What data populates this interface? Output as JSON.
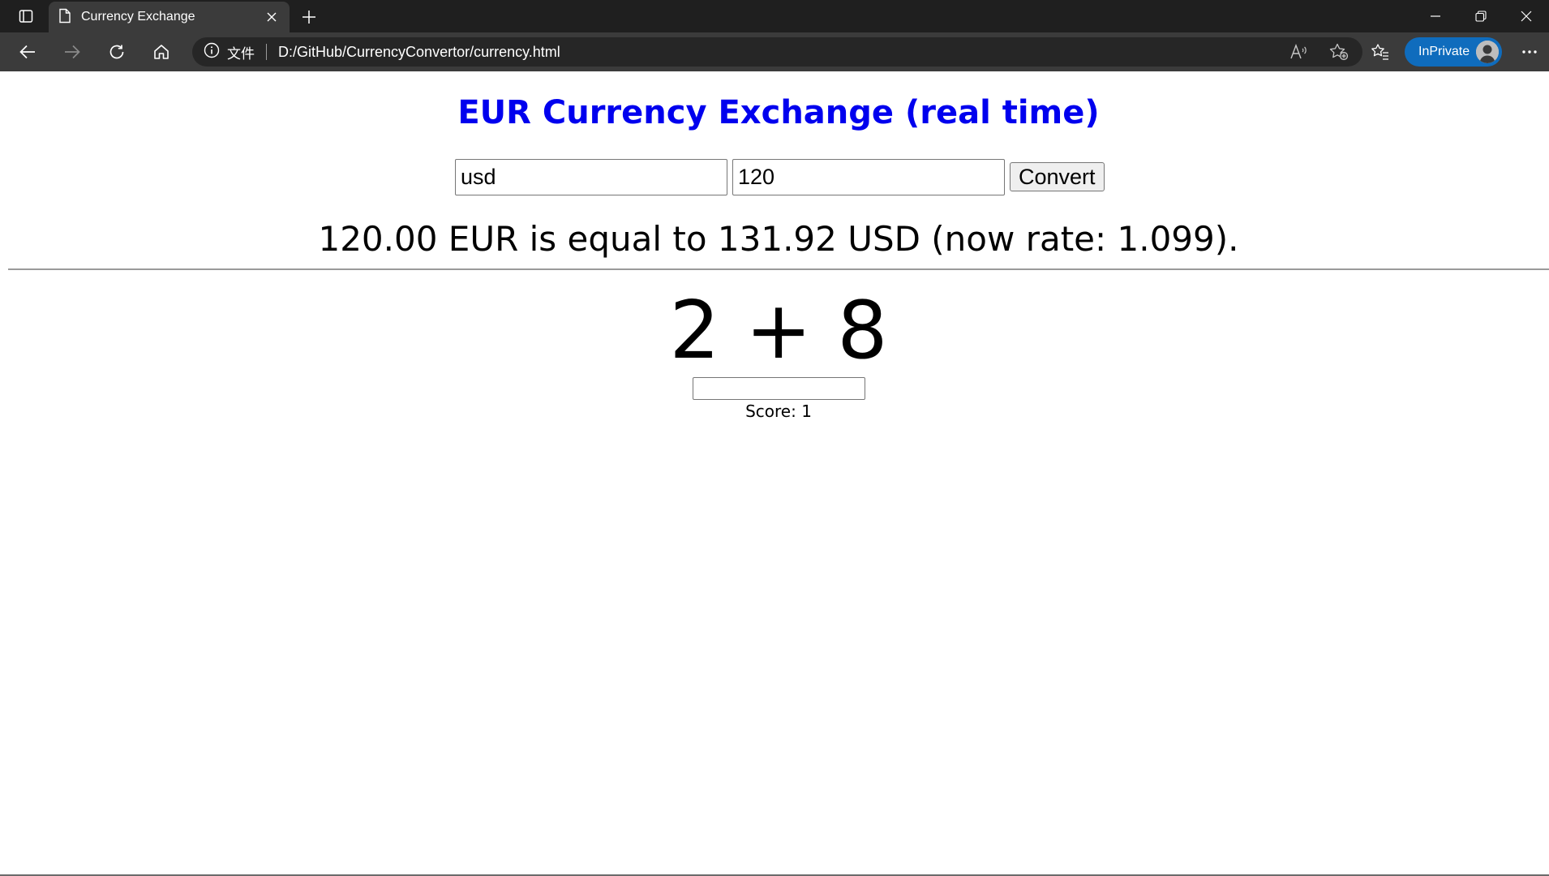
{
  "browser": {
    "tab": {
      "title": "Currency Exchange"
    },
    "address": {
      "site_label": "文件",
      "url": "D:/GitHub/CurrencyConvertor/currency.html"
    },
    "profile": {
      "label": "InPrivate"
    },
    "icons": {
      "tab_actions": "tab-actions-icon",
      "page": "page-icon",
      "close_tab": "close-icon",
      "new_tab": "plus-icon",
      "minimize": "minimize-icon",
      "restore": "restore-icon",
      "close_window": "close-window-icon",
      "back": "back-arrow-icon",
      "forward": "forward-arrow-icon",
      "refresh": "refresh-icon",
      "home": "home-icon",
      "info": "info-icon",
      "read_aloud": "read-aloud-icon",
      "add_favorite": "add-favorite-icon",
      "favorites": "favorites-icon",
      "more": "more-icon"
    }
  },
  "page": {
    "heading": "EUR Currency Exchange (real time)",
    "currency_input": {
      "value": "usd"
    },
    "amount_input": {
      "value": "120"
    },
    "convert_label": "Convert",
    "result": "120.00 EUR is equal to 131.92 USD (now rate: 1.099).",
    "math": {
      "left": "2",
      "operator": "+",
      "right": "8"
    },
    "answer_input": {
      "value": ""
    },
    "score_text": "Score: 1"
  },
  "colors": {
    "heading": "#0000ee",
    "chrome_dark": "#1f1f1f",
    "toolbar": "#3b3b3b",
    "inprivate": "#0f6cbd"
  }
}
